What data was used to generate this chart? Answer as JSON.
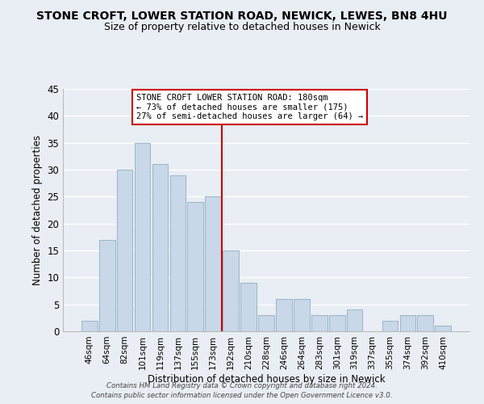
{
  "title": "STONE CROFT, LOWER STATION ROAD, NEWICK, LEWES, BN8 4HU",
  "subtitle": "Size of property relative to detached houses in Newick",
  "xlabel": "Distribution of detached houses by size in Newick",
  "ylabel": "Number of detached properties",
  "categories": [
    "46sqm",
    "64sqm",
    "82sqm",
    "101sqm",
    "119sqm",
    "137sqm",
    "155sqm",
    "173sqm",
    "192sqm",
    "210sqm",
    "228sqm",
    "246sqm",
    "264sqm",
    "283sqm",
    "301sqm",
    "319sqm",
    "337sqm",
    "355sqm",
    "374sqm",
    "392sqm",
    "410sqm"
  ],
  "values": [
    2,
    17,
    30,
    35,
    31,
    29,
    24,
    25,
    15,
    9,
    3,
    6,
    6,
    3,
    3,
    4,
    0,
    2,
    3,
    3,
    1
  ],
  "bar_color": "#c8d8e8",
  "bar_edge_color": "#a0b8cc",
  "vline_index": 7,
  "vline_color": "#cc0000",
  "annotation_line1": "STONE CROFT LOWER STATION ROAD: 180sqm",
  "annotation_line2": "← 73% of detached houses are smaller (175)",
  "annotation_line3": "27% of semi-detached houses are larger (64) →",
  "annotation_box_color": "#cc0000",
  "ylim": [
    0,
    45
  ],
  "yticks": [
    0,
    5,
    10,
    15,
    20,
    25,
    30,
    35,
    40,
    45
  ],
  "footer1": "Contains HM Land Registry data © Crown copyright and database right 2024.",
  "footer2": "Contains public sector information licensed under the Open Government Licence v3.0.",
  "background_color": "#e8eef4",
  "grid_color": "#ffffff",
  "title_fontsize": 10,
  "subtitle_fontsize": 9
}
